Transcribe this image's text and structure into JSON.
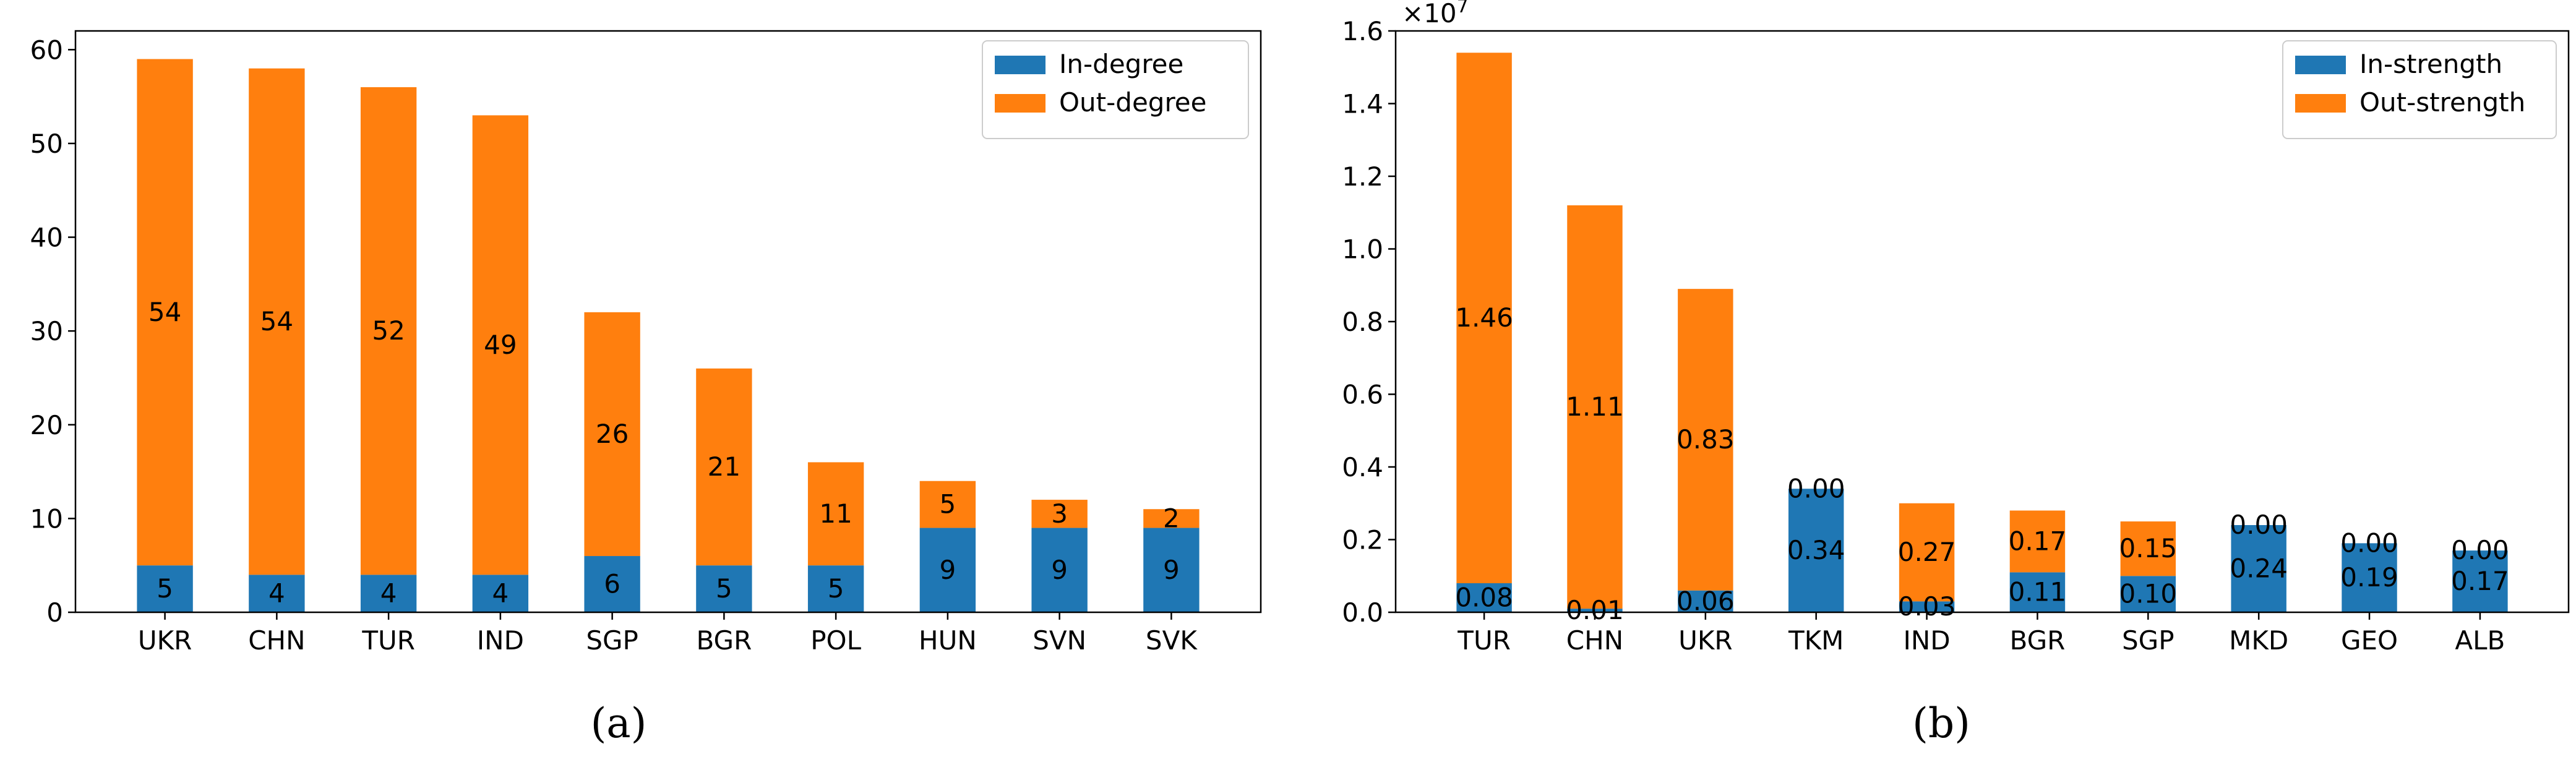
{
  "chart_data": [
    {
      "type": "bar",
      "stacked": true,
      "caption": "(a)",
      "categories": [
        "UKR",
        "CHN",
        "TUR",
        "IND",
        "SGP",
        "BGR",
        "POL",
        "HUN",
        "SVN",
        "SVK"
      ],
      "series": [
        {
          "name": "In-degree",
          "color": "#1f77b4",
          "values": [
            5,
            4,
            4,
            4,
            6,
            5,
            5,
            9,
            9,
            9
          ]
        },
        {
          "name": "Out-degree",
          "color": "#ff7f0e",
          "values": [
            54,
            54,
            52,
            49,
            26,
            21,
            11,
            5,
            3,
            2
          ]
        }
      ],
      "bar_labels": [
        [
          "5",
          "4",
          "4",
          "4",
          "6",
          "5",
          "5",
          "9",
          "9",
          "9"
        ],
        [
          "54",
          "54",
          "52",
          "49",
          "26",
          "21",
          "11",
          "5",
          "3",
          "2"
        ]
      ],
      "ylim": [
        0,
        62
      ],
      "yticks": [
        0,
        10,
        20,
        30,
        40,
        50,
        60
      ],
      "ytick_labels": [
        "0",
        "10",
        "20",
        "30",
        "40",
        "50",
        "60"
      ],
      "legend_position": "top-right",
      "grid": false,
      "xlabel": "",
      "ylabel": ""
    },
    {
      "type": "bar",
      "stacked": true,
      "caption": "(b)",
      "categories": [
        "TUR",
        "CHN",
        "UKR",
        "TKM",
        "IND",
        "BGR",
        "SGP",
        "MKD",
        "GEO",
        "ALB"
      ],
      "series": [
        {
          "name": "In-strength",
          "color": "#1f77b4",
          "values": [
            0.08,
            0.01,
            0.06,
            0.34,
            0.03,
            0.11,
            0.1,
            0.24,
            0.19,
            0.17
          ]
        },
        {
          "name": "Out-strength",
          "color": "#ff7f0e",
          "values": [
            1.46,
            1.11,
            0.83,
            0.0,
            0.27,
            0.17,
            0.15,
            0.0,
            0.0,
            0.0
          ]
        }
      ],
      "bar_labels": [
        [
          "0.08",
          "0.01",
          "0.06",
          "0.34",
          "0.03",
          "0.11",
          "0.10",
          "0.24",
          "0.19",
          "0.17"
        ],
        [
          "1.46",
          "1.11",
          "0.83",
          "0.00",
          "0.27",
          "0.17",
          "0.15",
          "0.00",
          "0.00",
          "0.00"
        ]
      ],
      "ylim": [
        0,
        1.6
      ],
      "yticks": [
        0.0,
        0.2,
        0.4,
        0.6,
        0.8,
        1.0,
        1.2,
        1.4,
        1.6
      ],
      "ytick_labels": [
        "0.0",
        "0.2",
        "0.4",
        "0.6",
        "0.8",
        "1.0",
        "1.2",
        "1.4",
        "1.6"
      ],
      "y_scale_base": "×10",
      "y_scale_exponent": "7",
      "legend_position": "top-right",
      "grid": false,
      "xlabel": "",
      "ylabel": ""
    }
  ]
}
